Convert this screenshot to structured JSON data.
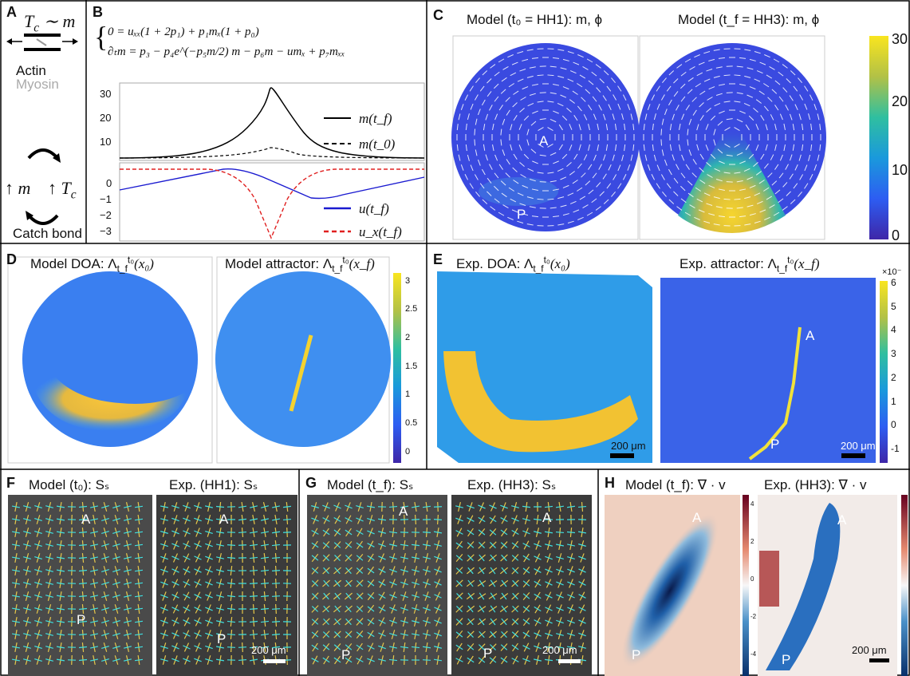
{
  "A": {
    "letter": "A",
    "tension": {
      "sym": "T",
      "sub": "c",
      "rest": " ∼ m"
    },
    "actin": "Actin",
    "myosin": "Myosin",
    "up_m": "↑ m",
    "up_tc": {
      "sym": "↑ T",
      "sub": "c"
    },
    "caption": "Catch bond"
  },
  "B": {
    "letter": "B",
    "eq1": "0 = uₓₓ(1 + 2p₁) + p₁mₓ(1 + p₀)",
    "eq2": "∂ₜm = p₃ − p₄e^(−p₅m/2) m − p₆m − umₓ + p₇mₓₓ",
    "top_ticks": [
      "30",
      "20",
      "10"
    ],
    "bottom_ticks": [
      "0",
      "−1",
      "−2",
      "−3"
    ],
    "legend": [
      "m(t_f)",
      "m(t_0)",
      "u(t_f)",
      "u_x(t_f)"
    ]
  },
  "C": {
    "letter": "C",
    "title_left": "Model (t₀ = HH1): m, ϕ",
    "title_right": "Model (t_f = HH3): m, ϕ",
    "label_a": "A",
    "label_p": "P",
    "colorbar": [
      "30",
      "20",
      "10",
      "0"
    ]
  },
  "D": {
    "letter": "D",
    "title_left": {
      "prefix": "Model DOA: Λ",
      "sup": "t₀",
      "sub": "t_f",
      "arg": "(x₀)"
    },
    "title_right": {
      "prefix": "Model attractor: Λ",
      "sup": "t₀",
      "sub": "t_f",
      "arg": "(x_f)"
    },
    "colorbar": [
      "3",
      "2.5",
      "2",
      "1.5",
      "1",
      "0.5",
      "0"
    ]
  },
  "E": {
    "letter": "E",
    "title_left": {
      "prefix": "Exp. DOA: Λ",
      "sup": "t₀",
      "sub": "t_f",
      "arg": "(x₀)"
    },
    "title_right": {
      "prefix": "Exp. attractor: Λ",
      "sup": "t₀",
      "sub": "t_f",
      "arg": "(x_f)"
    },
    "multiplier": "×10⁻",
    "colorbar": [
      "6",
      "5",
      "4",
      "3",
      "2",
      "1",
      "0",
      "-1"
    ],
    "scale_left": "200 μm",
    "scale_right": "200 μm",
    "label_a": "A",
    "label_p": "P"
  },
  "F": {
    "letter": "F",
    "title_left": "Model (t₀): Sₛ",
    "title_right": "Exp. (HH1): Sₛ",
    "labels": [
      "A",
      "P",
      "A",
      "P"
    ],
    "scale": "200 μm"
  },
  "G": {
    "letter": "G",
    "title_left": "Model (t_f): Sₛ",
    "title_right": "Exp. (HH3): Sₛ",
    "labels": [
      "A",
      "P",
      "A",
      "P"
    ],
    "scale": "200 μm"
  },
  "H": {
    "letter": "H",
    "title_left": "Model (t_f): ∇ · v",
    "title_right": "Exp. (HH3): ∇ · v",
    "colorbar": [
      "4",
      "2",
      "0",
      "-2",
      "-4"
    ],
    "labels": [
      "A",
      "P",
      "A",
      "P"
    ],
    "scale": "200 μm"
  }
}
